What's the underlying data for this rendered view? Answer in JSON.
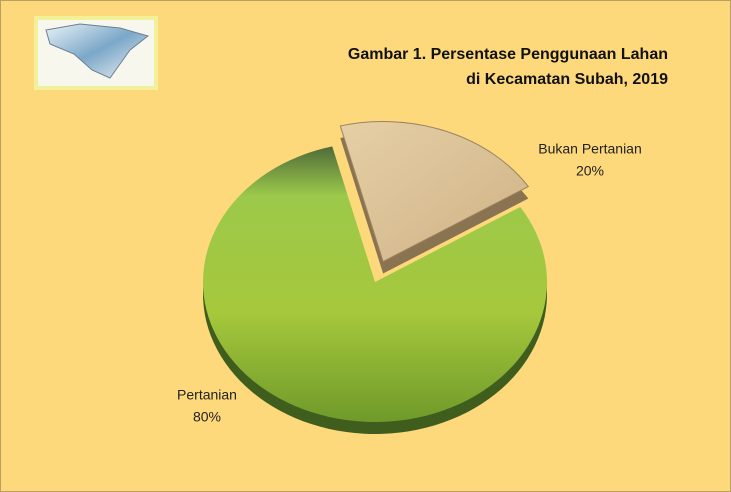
{
  "chart_data": {
    "type": "pie",
    "title": [
      "Gambar 1. Persentase Penggunaan Lahan",
      "di Kecamatan Subah, 2019"
    ],
    "categories": [
      "Pertanian",
      "Bukan Pertanian"
    ],
    "values": [
      80,
      20
    ],
    "value_labels": [
      "80%",
      "20%"
    ],
    "colors": [
      "#8fbf3a",
      "#dcc39a"
    ],
    "exploded": [
      false,
      true
    ]
  }
}
